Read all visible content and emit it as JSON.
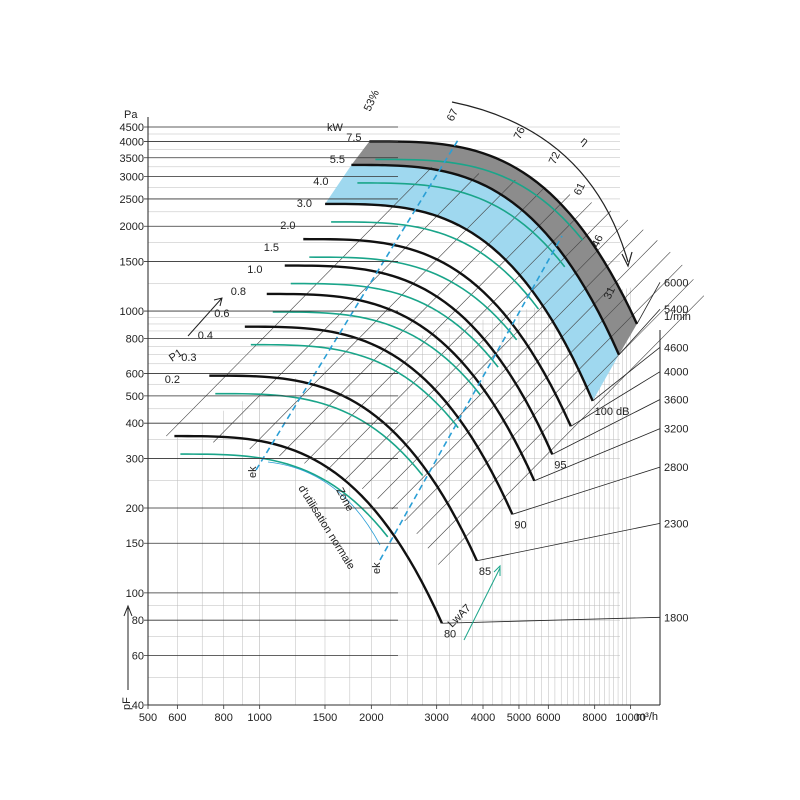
{
  "chart_data": {
    "type": "line",
    "title": "",
    "y_unit": "Pa",
    "y_label": "pF",
    "x_unit": "m³/h",
    "rpm_unit": "1/min",
    "kw_unit": "kW",
    "log_scale": true,
    "y_ticks": [
      "4500",
      "4000",
      "3500",
      "3000",
      "2500",
      "2000",
      "1500",
      "1000",
      "800",
      "600",
      "500",
      "400",
      "300",
      "200",
      "150",
      "100",
      "80",
      "60",
      "40"
    ],
    "x_ticks": [
      "500",
      "600",
      "800",
      "1000",
      "1500",
      "2000",
      "3000",
      "4000",
      "5000",
      "6000",
      "8000",
      "10000"
    ],
    "ylim": [
      40,
      4500
    ],
    "xlim": [
      500,
      12000
    ],
    "speed_curves": [
      {
        "rpm": "1800",
        "peak_pressure": 360,
        "cutoff_flow": 3100,
        "cutoff_pressure": 78,
        "db_label": "80"
      },
      {
        "rpm": "2300",
        "peak_pressure": 590,
        "cutoff_flow": 3850,
        "cutoff_pressure": 130,
        "db_label": "85"
      },
      {
        "rpm": "2800",
        "peak_pressure": 880,
        "cutoff_flow": 4800,
        "cutoff_pressure": 190,
        "db_label": "90"
      },
      {
        "rpm": "3200",
        "peak_pressure": 1150,
        "cutoff_flow": 5500,
        "cutoff_pressure": 250,
        "db_label": ""
      },
      {
        "rpm": "3600",
        "peak_pressure": 1450,
        "cutoff_flow": 6150,
        "cutoff_pressure": 310,
        "db_label": "95"
      },
      {
        "rpm": "4000",
        "peak_pressure": 1800,
        "cutoff_flow": 6900,
        "cutoff_pressure": 390,
        "db_label": ""
      },
      {
        "rpm": "4600",
        "peak_pressure": 2400,
        "cutoff_flow": 7900,
        "cutoff_pressure": 480,
        "db_label": "100 dB"
      },
      {
        "rpm": "5400",
        "peak_pressure": 3300,
        "cutoff_flow": 9300,
        "cutoff_pressure": 700,
        "db_label": ""
      },
      {
        "rpm": "6000",
        "peak_pressure": 4000,
        "cutoff_flow": 10400,
        "cutoff_pressure": 900,
        "db_label": ""
      }
    ],
    "power_labels": [
      "0.2",
      "0.3",
      "0.4",
      "0.6",
      "0.8",
      "1.0",
      "1.5",
      "2.0",
      "3.0",
      "4.0",
      "5.5",
      "7.5"
    ],
    "efficiency_labels": [
      "53%",
      "67",
      "76",
      "72",
      "61",
      "46",
      "31"
    ],
    "efficiency_symbol": "η",
    "power_symbol": "P1",
    "lw_symbol": "LwA7",
    "zone_text_1": "Zone",
    "zone_text_2": "d'utilisation normale",
    "zone_markers": [
      "ek",
      "ek"
    ],
    "colors": {
      "speed": "#111111",
      "power": "#1aa58a",
      "zone_line": "#2a9fd6",
      "zone_fill": "#9fd8ef",
      "high_fill": "#8c8c8c",
      "grid": "#444444"
    }
  }
}
